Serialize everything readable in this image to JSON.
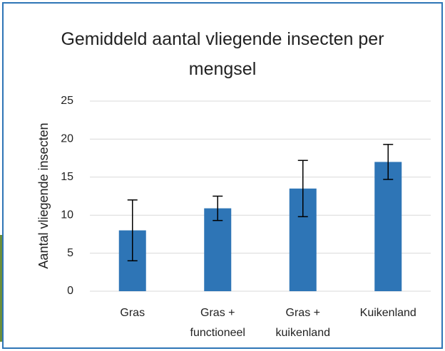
{
  "chart_data": {
    "type": "bar",
    "title": "Gemiddeld aantal vliegende insecten per mengsel",
    "y_label": "Aantal vliegende insecten",
    "categories": [
      "Gras",
      "Gras + functioneel",
      "Gras + kuikenland",
      "Kuikenland"
    ],
    "values": [
      8,
      10.9,
      13.5,
      17
    ],
    "errors": [
      4,
      1.6,
      3.7,
      2.3
    ],
    "color": "#2e75b6",
    "ylim": [
      0,
      25
    ],
    "yticks": [
      0,
      5,
      10,
      15,
      20,
      25
    ],
    "grid": true
  }
}
